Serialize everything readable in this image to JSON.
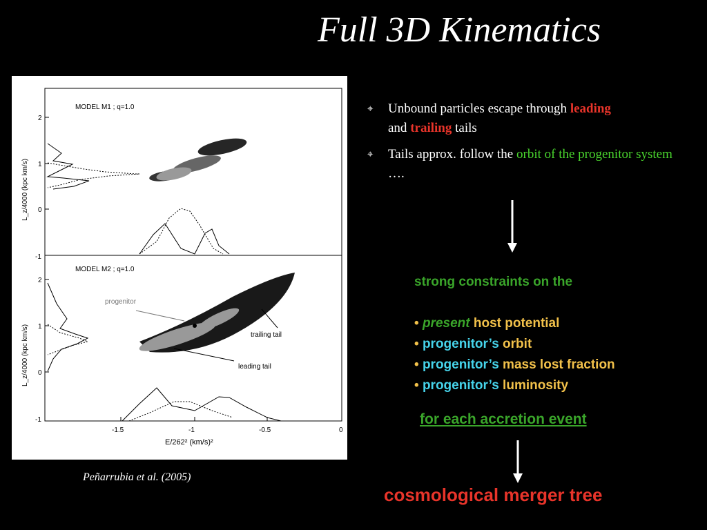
{
  "title": "Full 3D Kinematics",
  "caption": "Peñarrubia et al. (2005)",
  "bullets": {
    "b1_pre": "Unbound particles escape through ",
    "b1_leading": "leading",
    "b1_and": "and ",
    "b1_trailing": "trailing",
    "b1_post": " tails",
    "b2_pre": "Tails approx. follow the ",
    "b2_green": "orbit of the progenitor system",
    "b2_post": " …."
  },
  "constraints": {
    "heading": "strong constraints on the",
    "items": [
      {
        "prefix": "present",
        "suffix": " host potential"
      },
      {
        "prefix": "progenitor’s",
        "suffix": "  orbit"
      },
      {
        "prefix": "progenitor’s",
        "suffix": "  mass lost fraction"
      },
      {
        "prefix": "progenitor’s",
        "suffix": "  luminosity"
      }
    ]
  },
  "accretion": "for each accretion event",
  "merger": "cosmological merger tree",
  "figure": {
    "panel1_label": "MODEL M1 ; q=1.0",
    "panel2_label": "MODEL M2 ; q=1.0",
    "progenitor": "progenitor",
    "trailing_tail": "trailing tail",
    "leading_tail": "leading tail",
    "ylabel": "L_z/4000 (kpc km/s)",
    "xlabel": "E/262² (km/s)²",
    "xticks": [
      "-1.5",
      "-1",
      "-0.5",
      "0"
    ],
    "yticks_top": [
      "2",
      "1",
      "0",
      "-1"
    ],
    "yticks_bottom": [
      "2",
      "1",
      "0",
      "-1"
    ]
  },
  "colors": {
    "background": "#000000",
    "red": "#e8342a",
    "green": "#3aa52a",
    "yellow": "#f2c14a",
    "cyan": "#46d3ea"
  }
}
